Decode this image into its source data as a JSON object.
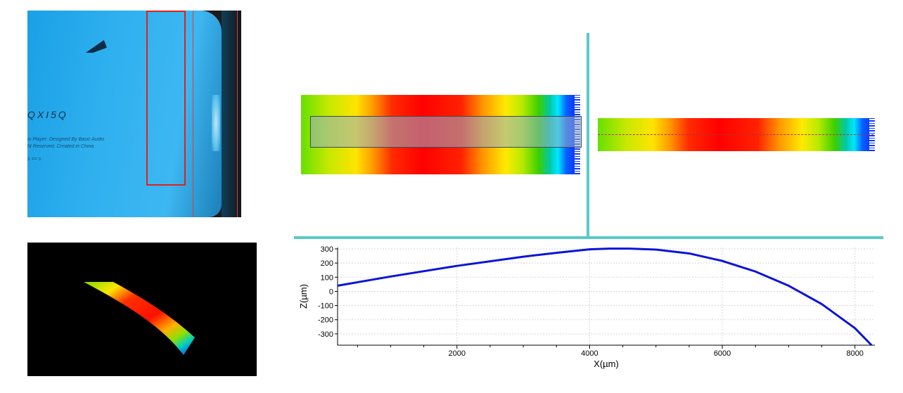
{
  "photo": {
    "brand_text": "QXI5Q",
    "line1": "io Player. Designed By Basic Audio",
    "line2": "ht Reserved. Created in China",
    "line3": "s  ==  s"
  },
  "colors": {
    "divider": "#5cc9c6",
    "profile_curve": "#0a14d8",
    "selection_rect": "#e0221a"
  },
  "chart_data": {
    "type": "line",
    "xlabel": "X(µm)",
    "ylabel": "Z(µm)",
    "xlim": [
      200,
      8300
    ],
    "ylim": [
      -380,
      310
    ],
    "x_ticks": [
      2000,
      4000,
      6000,
      8000
    ],
    "y_ticks": [
      300,
      200,
      100,
      0,
      -100,
      -200,
      -300
    ],
    "grid": true,
    "series": [
      {
        "x": [
          200,
          1000,
          2000,
          3000,
          3500,
          4000,
          4300,
          4600,
          5000,
          5500,
          6000,
          6500,
          7000,
          7500,
          8000,
          8250
        ],
        "y": [
          40,
          105,
          180,
          245,
          272,
          297,
          302,
          302,
          295,
          268,
          215,
          140,
          40,
          -90,
          -260,
          -380
        ]
      }
    ]
  }
}
